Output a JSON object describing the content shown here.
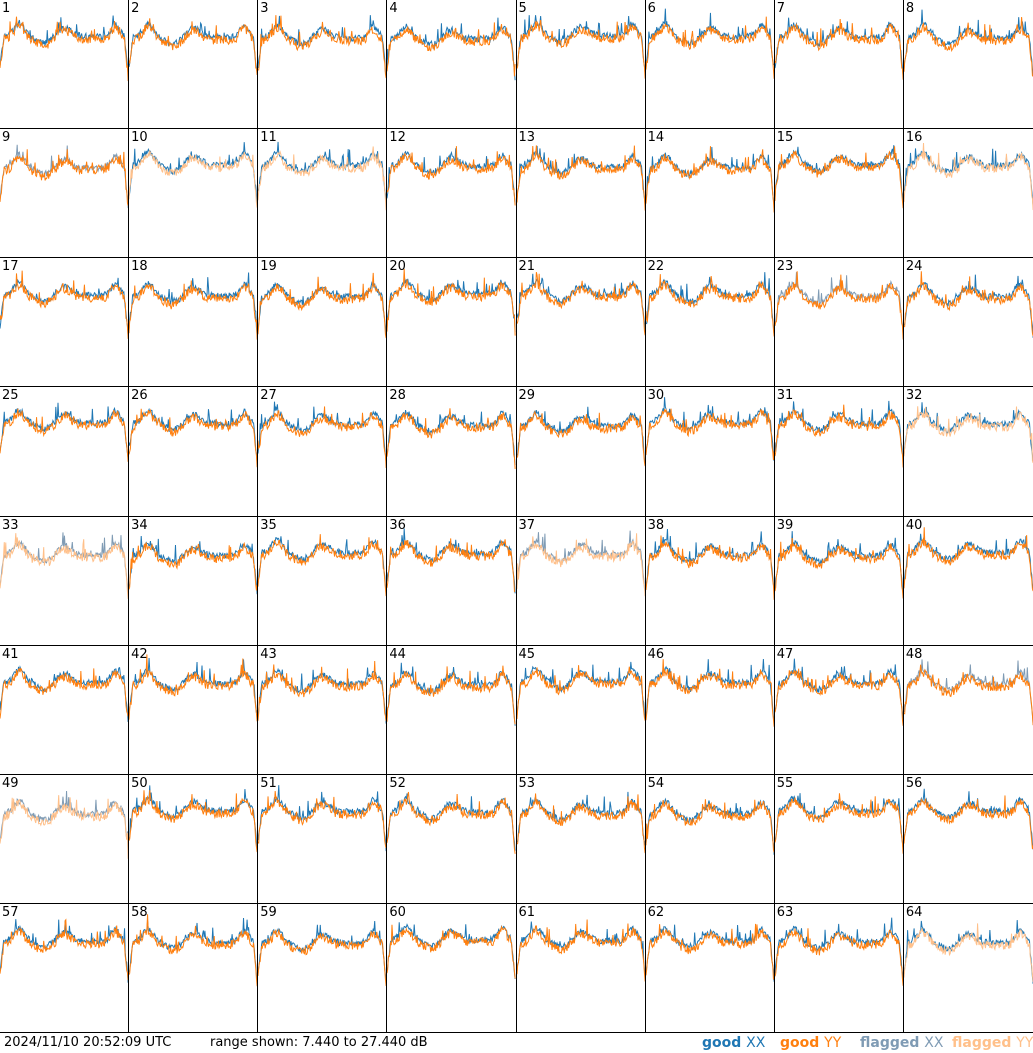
{
  "timestamp": "2024/11/10 20:52:09 UTC",
  "range_text": "range shown: 7.440 to 27.440 dB",
  "legend": [
    {
      "prefix": "good ",
      "pol": "XX",
      "color": "#1f77b4"
    },
    {
      "prefix": "good ",
      "pol": "YY",
      "color": "#ff7f0e"
    },
    {
      "prefix": "flagged ",
      "pol": "XX",
      "color": "#7f9bb4"
    },
    {
      "prefix": "flagged ",
      "pol": "YY",
      "color": "#ffc08a"
    }
  ],
  "colors": {
    "good_xx": "#1f77b4",
    "good_yy": "#ff7f0e",
    "flagged_xx": "#7f9bb4",
    "flagged_yy": "#ffc08a"
  },
  "chart_data": {
    "type": "line",
    "title": "",
    "ylim": [
      7.44,
      27.44
    ],
    "yunit": "dB",
    "grid": {
      "rows": 8,
      "cols": 8
    },
    "panels": [
      {
        "id": "1",
        "xx": "good",
        "yy": "good"
      },
      {
        "id": "2",
        "xx": "good",
        "yy": "good"
      },
      {
        "id": "3",
        "xx": "good",
        "yy": "good"
      },
      {
        "id": "4",
        "xx": "good",
        "yy": "good"
      },
      {
        "id": "5",
        "xx": "good",
        "yy": "good"
      },
      {
        "id": "6",
        "xx": "good",
        "yy": "good"
      },
      {
        "id": "7",
        "xx": "good",
        "yy": "good"
      },
      {
        "id": "8",
        "xx": "good",
        "yy": "good"
      },
      {
        "id": "9",
        "xx": "flagged",
        "yy": "good"
      },
      {
        "id": "10",
        "xx": "good",
        "yy": "flagged"
      },
      {
        "id": "11",
        "xx": "good",
        "yy": "flagged"
      },
      {
        "id": "12",
        "xx": "good",
        "yy": "good"
      },
      {
        "id": "13",
        "xx": "good",
        "yy": "good"
      },
      {
        "id": "14",
        "xx": "good",
        "yy": "good"
      },
      {
        "id": "15",
        "xx": "good",
        "yy": "good"
      },
      {
        "id": "16",
        "xx": "good",
        "yy": "flagged"
      },
      {
        "id": "17",
        "xx": "good",
        "yy": "good"
      },
      {
        "id": "18",
        "xx": "good",
        "yy": "good"
      },
      {
        "id": "19",
        "xx": "good",
        "yy": "good"
      },
      {
        "id": "20",
        "xx": "good",
        "yy": "good"
      },
      {
        "id": "21",
        "xx": "good",
        "yy": "good"
      },
      {
        "id": "22",
        "xx": "good",
        "yy": "good"
      },
      {
        "id": "23",
        "xx": "flagged",
        "yy": "good"
      },
      {
        "id": "24",
        "xx": "good",
        "yy": "good"
      },
      {
        "id": "25",
        "xx": "good",
        "yy": "good"
      },
      {
        "id": "26",
        "xx": "good",
        "yy": "good"
      },
      {
        "id": "27",
        "xx": "good",
        "yy": "good"
      },
      {
        "id": "28",
        "xx": "good",
        "yy": "good"
      },
      {
        "id": "29",
        "xx": "good",
        "yy": "good"
      },
      {
        "id": "30",
        "xx": "good",
        "yy": "good"
      },
      {
        "id": "31",
        "xx": "good",
        "yy": "good"
      },
      {
        "id": "32",
        "xx": "good",
        "yy": "flagged"
      },
      {
        "id": "33",
        "xx": "flagged",
        "yy": "flagged"
      },
      {
        "id": "34",
        "xx": "good",
        "yy": "good"
      },
      {
        "id": "35",
        "xx": "good",
        "yy": "good"
      },
      {
        "id": "36",
        "xx": "good",
        "yy": "good"
      },
      {
        "id": "37",
        "xx": "flagged",
        "yy": "flagged"
      },
      {
        "id": "38",
        "xx": "good",
        "yy": "good"
      },
      {
        "id": "39",
        "xx": "good",
        "yy": "good"
      },
      {
        "id": "40",
        "xx": "good",
        "yy": "good"
      },
      {
        "id": "41",
        "xx": "good",
        "yy": "good"
      },
      {
        "id": "42",
        "xx": "good",
        "yy": "good"
      },
      {
        "id": "43",
        "xx": "good",
        "yy": "good"
      },
      {
        "id": "44",
        "xx": "good",
        "yy": "good"
      },
      {
        "id": "45",
        "xx": "good",
        "yy": "good"
      },
      {
        "id": "46",
        "xx": "good",
        "yy": "good"
      },
      {
        "id": "47",
        "xx": "good",
        "yy": "good"
      },
      {
        "id": "48",
        "xx": "flagged",
        "yy": "good"
      },
      {
        "id": "49",
        "xx": "flagged",
        "yy": "flagged"
      },
      {
        "id": "50",
        "xx": "good",
        "yy": "good"
      },
      {
        "id": "51",
        "xx": "good",
        "yy": "good"
      },
      {
        "id": "52",
        "xx": "good",
        "yy": "good"
      },
      {
        "id": "53",
        "xx": "good",
        "yy": "good"
      },
      {
        "id": "54",
        "xx": "good",
        "yy": "good"
      },
      {
        "id": "55",
        "xx": "good",
        "yy": "good"
      },
      {
        "id": "56",
        "xx": "good",
        "yy": "good"
      },
      {
        "id": "57",
        "xx": "good",
        "yy": "good"
      },
      {
        "id": "58",
        "xx": "good",
        "yy": "good"
      },
      {
        "id": "59",
        "xx": "good",
        "yy": "good"
      },
      {
        "id": "60",
        "xx": "good",
        "yy": "good"
      },
      {
        "id": "61",
        "xx": "good",
        "yy": "good"
      },
      {
        "id": "62",
        "xx": "good",
        "yy": "good"
      },
      {
        "id": "63",
        "xx": "good",
        "yy": "good"
      },
      {
        "id": "64",
        "xx": "good",
        "yy": "flagged"
      }
    ]
  }
}
